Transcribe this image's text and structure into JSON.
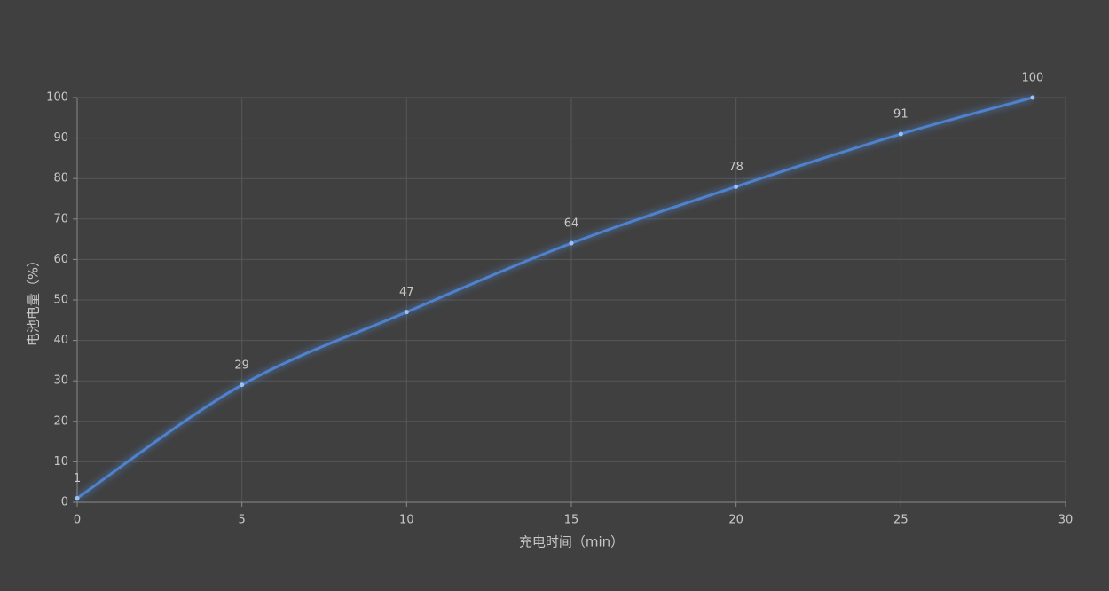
{
  "chart_data": {
    "type": "line",
    "x_label": "充电时间（min）",
    "y_label": "电池电量（%）",
    "x": [
      0,
      5,
      10,
      15,
      20,
      25,
      29
    ],
    "series": [
      {
        "name": "电池电量",
        "color": "#4f82cc",
        "values": [
          1,
          29,
          47,
          64,
          78,
          91,
          100
        ]
      }
    ],
    "xlim": [
      0,
      30
    ],
    "xticks": [
      0,
      5,
      10,
      15,
      20,
      25,
      30
    ],
    "ylim": [
      0,
      100
    ],
    "yticks": [
      0,
      10,
      20,
      30,
      40,
      50,
      60,
      70,
      80,
      90,
      100
    ],
    "grid": true,
    "smooth": true,
    "data_labels": true
  }
}
